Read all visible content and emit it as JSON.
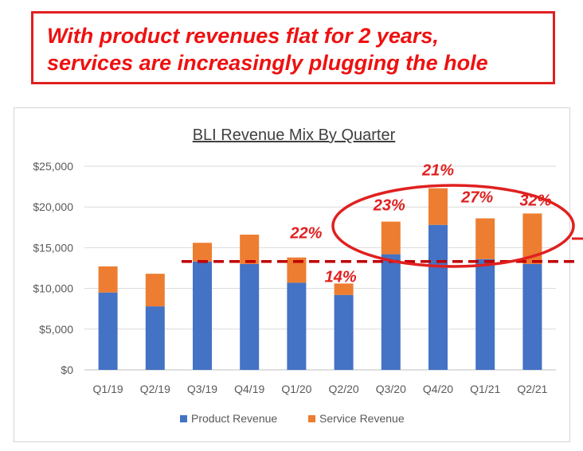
{
  "headline": {
    "line1": "With product revenues flat for 2 years,",
    "line2": "services are increasingly plugging the hole"
  },
  "chart_data": {
    "type": "bar",
    "stacked": true,
    "title": "BLI Revenue Mix By Quarter",
    "xlabel": "",
    "ylabel": "",
    "ylim": [
      0,
      25000
    ],
    "yticks": [
      "$0",
      "$5,000",
      "$10,000",
      "$15,000",
      "$20,000",
      "$25,000"
    ],
    "ytick_values": [
      0,
      5000,
      10000,
      15000,
      20000,
      25000
    ],
    "grid": true,
    "legend_position": "bottom",
    "categories": [
      "Q1/19",
      "Q2/19",
      "Q3/19",
      "Q4/19",
      "Q1/20",
      "Q2/20",
      "Q3/20",
      "Q4/20",
      "Q1/21",
      "Q2/21"
    ],
    "series": [
      {
        "name": "Product Revenue",
        "color": "#4472c4",
        "values": [
          9500,
          7800,
          13300,
          13000,
          10700,
          9200,
          14200,
          17800,
          13600,
          13000
        ]
      },
      {
        "name": "Service Revenue",
        "color": "#ed7d31",
        "values": [
          3200,
          4000,
          2300,
          3600,
          3100,
          1400,
          4000,
          4500,
          5000,
          6200
        ]
      }
    ],
    "annotations": [
      {
        "label": "22%",
        "category": "Q1/20"
      },
      {
        "label": "14%",
        "category": "Q2/20"
      },
      {
        "label": "23%",
        "category": "Q3/20"
      },
      {
        "label": "21%",
        "category": "Q4/20"
      },
      {
        "label": "27%",
        "category": "Q1/21"
      },
      {
        "label": "32%",
        "category": "Q2/21"
      }
    ],
    "annotation_color": "#e02020",
    "reference_line": {
      "value": 13300,
      "style": "dashed",
      "color": "#c00000"
    }
  }
}
